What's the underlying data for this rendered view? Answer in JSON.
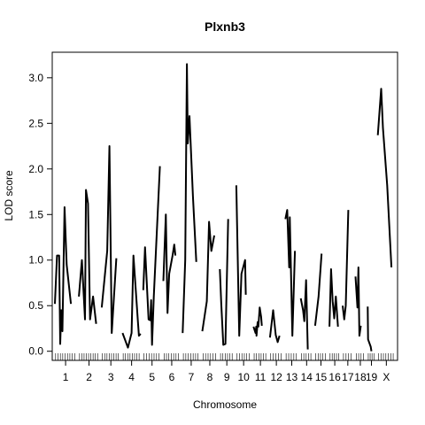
{
  "chart_data": {
    "type": "line",
    "title": "Plxnb3",
    "xlabel": "Chromosome",
    "ylabel": "LOD score",
    "ylim": [
      -0.1,
      3.28
    ],
    "y_ticks": [
      0.0,
      0.5,
      1.0,
      1.5,
      2.0,
      2.5,
      3.0
    ],
    "y_tick_labels": [
      "0.0",
      "0.5",
      "1.0",
      "1.5",
      "2.0",
      "2.5",
      "3.0"
    ],
    "grid": false,
    "x_tick_labels": [
      "1",
      "2",
      "3",
      "4",
      "5",
      "6",
      "7",
      "8",
      "9",
      "10",
      "11",
      "12",
      "13",
      "14",
      "15",
      "16",
      "17",
      "18",
      "19",
      "X"
    ],
    "chromosomes": [
      {
        "name": "1",
        "points": [
          [
            0,
            0.52
          ],
          [
            0.1,
            1.05
          ],
          [
            0.2,
            1.05
          ],
          [
            0.25,
            0.08
          ],
          [
            0.3,
            0.45
          ],
          [
            0.35,
            0.22
          ],
          [
            0.45,
            1.58
          ],
          [
            0.55,
            0.95
          ],
          [
            0.75,
            0.52
          ]
        ]
      },
      {
        "name": "2",
        "points": [
          [
            0,
            0.6
          ],
          [
            0.15,
            1.0
          ],
          [
            0.3,
            0.35
          ],
          [
            0.35,
            1.77
          ],
          [
            0.45,
            1.62
          ],
          [
            0.55,
            0.35
          ],
          [
            0.7,
            0.6
          ],
          [
            0.85,
            0.3
          ]
        ]
      },
      {
        "name": "3",
        "points": [
          [
            0,
            0.48
          ],
          [
            0.3,
            1.1
          ],
          [
            0.42,
            2.25
          ],
          [
            0.55,
            0.2
          ],
          [
            0.8,
            1.02
          ]
        ]
      },
      {
        "name": "4",
        "points": [
          [
            0,
            0.2
          ],
          [
            0.3,
            0.04
          ],
          [
            0.5,
            0.2
          ],
          [
            0.6,
            1.05
          ],
          [
            0.85,
            0.32
          ],
          [
            0.9,
            0.17
          ],
          [
            1.0,
            0.19
          ]
        ]
      },
      {
        "name": "5",
        "points": [
          [
            0,
            0.67
          ],
          [
            0.1,
            1.14
          ],
          [
            0.3,
            0.35
          ],
          [
            0.4,
            0.34
          ],
          [
            0.45,
            0.56
          ],
          [
            0.5,
            0.07
          ],
          [
            0.6,
            0.6
          ],
          [
            0.95,
            2.03
          ]
        ]
      },
      {
        "name": "6",
        "points": [
          [
            0,
            0.77
          ],
          [
            0.15,
            1.5
          ],
          [
            0.25,
            0.42
          ],
          [
            0.35,
            0.85
          ],
          [
            0.55,
            1.05
          ],
          [
            0.65,
            1.17
          ],
          [
            0.72,
            1.05
          ]
        ]
      },
      {
        "name": "7",
        "points": [
          [
            0,
            0.2
          ],
          [
            0.15,
            1.0
          ],
          [
            0.25,
            3.15
          ],
          [
            0.3,
            2.28
          ],
          [
            0.4,
            2.58
          ],
          [
            0.6,
            1.7
          ],
          [
            0.8,
            0.98
          ]
        ]
      },
      {
        "name": "8",
        "points": [
          [
            0,
            0.22
          ],
          [
            0.3,
            0.55
          ],
          [
            0.45,
            1.42
          ],
          [
            0.6,
            1.1
          ],
          [
            0.8,
            1.27
          ]
        ]
      },
      {
        "name": "9",
        "points": [
          [
            0,
            0.9
          ],
          [
            0.1,
            0.52
          ],
          [
            0.25,
            0.07
          ],
          [
            0.4,
            0.08
          ],
          [
            0.6,
            1.45
          ]
        ]
      },
      {
        "name": "10",
        "points": [
          [
            0,
            1.82
          ],
          [
            0.2,
            0.17
          ],
          [
            0.35,
            0.85
          ],
          [
            0.6,
            1.0
          ],
          [
            0.65,
            0.62
          ]
        ]
      },
      {
        "name": "11",
        "points": [
          [
            0,
            0.27
          ],
          [
            0.15,
            0.2
          ],
          [
            0.2,
            0.27
          ],
          [
            0.22,
            0.17
          ],
          [
            0.3,
            0.32
          ],
          [
            0.35,
            0.27
          ],
          [
            0.45,
            0.48
          ],
          [
            0.55,
            0.38
          ],
          [
            0.6,
            0.28
          ]
        ]
      },
      {
        "name": "12",
        "points": [
          [
            0,
            0.15
          ],
          [
            0.25,
            0.45
          ],
          [
            0.45,
            0.18
          ],
          [
            0.6,
            0.1
          ],
          [
            0.75,
            0.17
          ]
        ]
      },
      {
        "name": "13",
        "points": [
          [
            0,
            1.45
          ],
          [
            0.15,
            1.55
          ],
          [
            0.3,
            0.92
          ],
          [
            0.35,
            1.47
          ],
          [
            0.55,
            0.17
          ],
          [
            0.75,
            1.1
          ]
        ]
      },
      {
        "name": "14",
        "points": [
          [
            0,
            0.58
          ],
          [
            0.2,
            0.45
          ],
          [
            0.3,
            0.33
          ],
          [
            0.45,
            0.78
          ],
          [
            0.6,
            0.02
          ]
        ]
      },
      {
        "name": "15",
        "points": [
          [
            0,
            0.28
          ],
          [
            0.3,
            0.6
          ],
          [
            0.55,
            1.07
          ]
        ]
      },
      {
        "name": "16",
        "points": [
          [
            0,
            0.27
          ],
          [
            0.15,
            0.9
          ],
          [
            0.3,
            0.55
          ],
          [
            0.45,
            0.36
          ],
          [
            0.6,
            0.6
          ],
          [
            0.8,
            0.27
          ]
        ]
      },
      {
        "name": "17",
        "points": [
          [
            0,
            0.5
          ],
          [
            0.15,
            0.35
          ],
          [
            0.3,
            0.5
          ],
          [
            0.55,
            1.55
          ]
        ]
      },
      {
        "name": "18",
        "points": [
          [
            0,
            0.82
          ],
          [
            0.2,
            0.48
          ],
          [
            0.3,
            0.92
          ],
          [
            0.4,
            0.17
          ],
          [
            0.55,
            0.28
          ]
        ]
      },
      {
        "name": "19",
        "points": [
          [
            0,
            0.49
          ],
          [
            0.05,
            0.13
          ],
          [
            0.4,
            0.05
          ],
          [
            0.5,
            0.0
          ]
        ]
      },
      {
        "name": "X",
        "points": [
          [
            0,
            2.37
          ],
          [
            0.2,
            2.88
          ],
          [
            0.3,
            2.45
          ],
          [
            0.55,
            1.82
          ],
          [
            0.8,
            0.92
          ]
        ]
      }
    ]
  }
}
